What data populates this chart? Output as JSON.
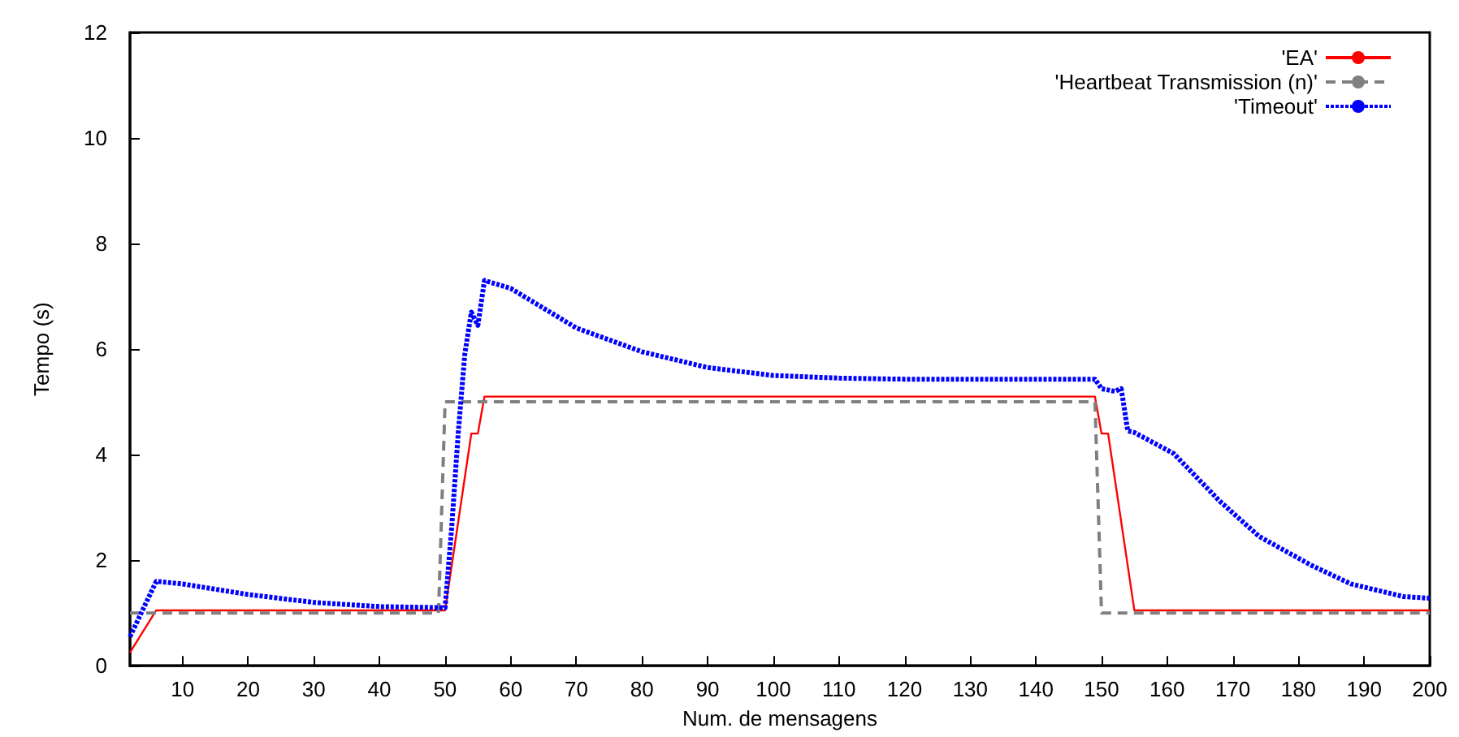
{
  "chart_data": {
    "type": "line",
    "xlabel": "Num. de mensagens",
    "ylabel": "Tempo (s)",
    "xlim": [
      2,
      200
    ],
    "xticks": [
      10,
      20,
      30,
      40,
      50,
      60,
      70,
      80,
      90,
      100,
      110,
      120,
      130,
      140,
      150,
      160,
      170,
      180,
      190,
      200
    ],
    "ylim": [
      0,
      12
    ],
    "yticks": [
      0,
      2,
      4,
      6,
      8,
      10,
      12
    ],
    "grid": false,
    "legend": "top right",
    "marker": "none",
    "series": [
      {
        "name": "'EA'",
        "color": "#ff0000",
        "line_style": "solid",
        "x": [
          2,
          6,
          50,
          54,
          55,
          56,
          149,
          150,
          151,
          155,
          200
        ],
        "values": [
          0.25,
          1.05,
          1.05,
          4.4,
          4.4,
          5.1,
          5.1,
          4.4,
          4.4,
          1.05,
          1.05
        ]
      },
      {
        "name": "'Heartbeat Transmission (n)'",
        "color": "#808080",
        "line_style": "dashed",
        "x": [
          2,
          49,
          50,
          149,
          150,
          200
        ],
        "values": [
          1,
          1,
          5,
          5,
          1,
          1
        ]
      },
      {
        "name": "'Timeout'",
        "color": "#0000ff",
        "line_style": "dotted",
        "x": [
          2,
          6,
          10,
          20,
          30,
          40,
          50,
          51,
          52,
          53,
          54,
          55,
          56,
          60,
          70,
          80,
          90,
          100,
          110,
          120,
          130,
          140,
          149,
          150,
          152,
          153,
          154,
          155,
          161,
          168,
          174,
          182,
          188,
          196,
          200
        ],
        "values": [
          0.55,
          1.6,
          1.55,
          1.35,
          1.2,
          1.12,
          1.1,
          2.6,
          4.4,
          5.9,
          6.7,
          6.45,
          7.3,
          7.15,
          6.4,
          5.95,
          5.65,
          5.5,
          5.45,
          5.43,
          5.43,
          5.43,
          5.43,
          5.25,
          5.2,
          5.25,
          4.45,
          4.42,
          4.02,
          3.12,
          2.45,
          1.9,
          1.55,
          1.31,
          1.28
        ]
      }
    ]
  }
}
